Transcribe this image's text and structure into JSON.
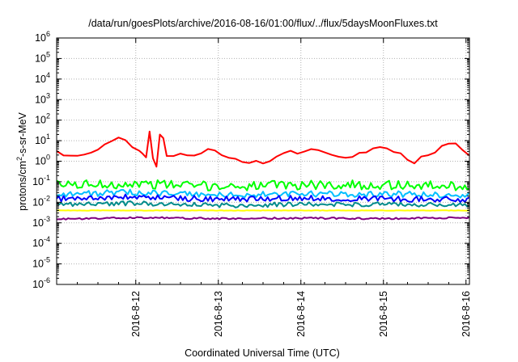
{
  "chart_data": {
    "type": "line",
    "title": "/data/run/goesPlots/archive/2016-08-16/01:00/flux/../flux/5daysMoonFluxes.txt",
    "xlabel": "Coordinated Universal Time (UTC)",
    "ylabel": "protons/cm²-s-sr-MeV",
    "ylabel_parts": {
      "pre": "protons/cm",
      "sup": "2",
      "post": "-s-sr-MeV"
    },
    "y_scale": "log",
    "ylim": [
      1e-06,
      1000000.0
    ],
    "y_ticks": [
      {
        "value": 1e-06,
        "base": "10",
        "exp": "-6"
      },
      {
        "value": 1e-05,
        "base": "10",
        "exp": "-5"
      },
      {
        "value": 0.0001,
        "base": "10",
        "exp": "-4"
      },
      {
        "value": 0.001,
        "base": "10",
        "exp": "-3"
      },
      {
        "value": 0.01,
        "base": "10",
        "exp": "-2"
      },
      {
        "value": 0.1,
        "base": "10",
        "exp": "-1"
      },
      {
        "value": 1,
        "base": "10",
        "exp": "0"
      },
      {
        "value": 10,
        "base": "10",
        "exp": "1"
      },
      {
        "value": 100,
        "base": "10",
        "exp": "2"
      },
      {
        "value": 1000,
        "base": "10",
        "exp": "3"
      },
      {
        "value": 10000,
        "base": "10",
        "exp": "4"
      },
      {
        "value": 100000,
        "base": "10",
        "exp": "5"
      },
      {
        "value": 1000000,
        "base": "10",
        "exp": "6"
      }
    ],
    "xlim": [
      "2016-08-11 01:00",
      "2016-08-16 01:00"
    ],
    "x_ticks": [
      "2016-8-12",
      "2016-8-13",
      "2016-8-14",
      "2016-8-15",
      "2016-8-16"
    ],
    "x_tick_dates": [
      "2016-08-12",
      "2016-08-13",
      "2016-08-14",
      "2016-08-15",
      "2016-08-16"
    ],
    "grid": true,
    "legend": "none",
    "series": [
      {
        "color": "#ff0000",
        "points": [
          [
            "2016-08-11 01:00",
            3.0
          ],
          [
            "2016-08-11 03:00",
            2.0
          ],
          [
            "2016-08-11 05:00",
            1.8
          ],
          [
            "2016-08-11 07:00",
            1.6
          ],
          [
            "2016-08-11 09:00",
            2.0
          ],
          [
            "2016-08-11 11:00",
            2.5
          ],
          [
            "2016-08-11 13:00",
            4.0
          ],
          [
            "2016-08-11 15:00",
            6.0
          ],
          [
            "2016-08-11 17:00",
            9.0
          ],
          [
            "2016-08-11 19:00",
            13.0
          ],
          [
            "2016-08-11 21:00",
            10.0
          ],
          [
            "2016-08-11 23:00",
            5.0
          ],
          [
            "2016-08-12 01:00",
            3.0
          ],
          [
            "2016-08-12 02:00",
            2.5
          ],
          [
            "2016-08-12 03:00",
            1.5
          ],
          [
            "2016-08-12 04:00",
            30.0
          ],
          [
            "2016-08-12 05:00",
            1.5
          ],
          [
            "2016-08-12 06:00",
            0.5
          ],
          [
            "2016-08-12 07:00",
            18.0
          ],
          [
            "2016-08-12 08:00",
            12.0
          ],
          [
            "2016-08-12 09:00",
            2.0
          ],
          [
            "2016-08-12 11:00",
            1.8
          ],
          [
            "2016-08-12 13:00",
            2.2
          ],
          [
            "2016-08-12 15:00",
            2.0
          ],
          [
            "2016-08-12 17:00",
            2.0
          ],
          [
            "2016-08-12 19:00",
            2.5
          ],
          [
            "2016-08-12 21:00",
            3.5
          ],
          [
            "2016-08-12 23:00",
            3.0
          ],
          [
            "2016-08-13 01:00",
            2.0
          ],
          [
            "2016-08-13 03:00",
            1.5
          ],
          [
            "2016-08-13 05:00",
            1.2
          ],
          [
            "2016-08-13 07:00",
            1.0
          ],
          [
            "2016-08-13 09:00",
            0.9
          ],
          [
            "2016-08-13 11:00",
            1.1
          ],
          [
            "2016-08-13 13:00",
            0.8
          ],
          [
            "2016-08-13 15:00",
            1.0
          ],
          [
            "2016-08-13 17:00",
            1.5
          ],
          [
            "2016-08-13 19:00",
            2.5
          ],
          [
            "2016-08-13 21:00",
            3.0
          ],
          [
            "2016-08-13 23:00",
            2.5
          ],
          [
            "2016-08-14 01:00",
            3.0
          ],
          [
            "2016-08-14 03:00",
            3.5
          ],
          [
            "2016-08-14 05:00",
            3.2
          ],
          [
            "2016-08-14 07:00",
            2.8
          ],
          [
            "2016-08-14 09:00",
            2.0
          ],
          [
            "2016-08-14 11:00",
            1.5
          ],
          [
            "2016-08-14 13:00",
            1.4
          ],
          [
            "2016-08-14 15:00",
            1.8
          ],
          [
            "2016-08-14 17:00",
            2.5
          ],
          [
            "2016-08-14 19:00",
            3.0
          ],
          [
            "2016-08-14 21:00",
            4.0
          ],
          [
            "2016-08-14 23:00",
            5.0
          ],
          [
            "2016-08-15 01:00",
            4.0
          ],
          [
            "2016-08-15 03:00",
            3.0
          ],
          [
            "2016-08-15 05:00",
            2.5
          ],
          [
            "2016-08-15 07:00",
            1.2
          ],
          [
            "2016-08-15 09:00",
            0.8
          ],
          [
            "2016-08-15 11:00",
            1.5
          ],
          [
            "2016-08-15 13:00",
            2.0
          ],
          [
            "2016-08-15 15:00",
            3.0
          ],
          [
            "2016-08-15 17:00",
            6.0
          ],
          [
            "2016-08-15 19:00",
            8.0
          ],
          [
            "2016-08-15 21:00",
            7.0
          ],
          [
            "2016-08-15 23:00",
            4.0
          ],
          [
            "2016-08-16 01:00",
            2.0
          ]
        ]
      },
      {
        "color": "#00ff00",
        "points": [
          [
            "2016-08-11 01:00",
            0.07
          ],
          [
            "2016-08-12 01:00",
            0.08
          ],
          [
            "2016-08-13 01:00",
            0.06
          ],
          [
            "2016-08-14 01:00",
            0.07
          ],
          [
            "2016-08-15 01:00",
            0.07
          ],
          [
            "2016-08-16 01:00",
            0.06
          ]
        ]
      },
      {
        "color": "#00bfff",
        "points": [
          [
            "2016-08-11 01:00",
            0.025
          ],
          [
            "2016-08-12 01:00",
            0.03
          ],
          [
            "2016-08-13 01:00",
            0.022
          ],
          [
            "2016-08-14 01:00",
            0.025
          ],
          [
            "2016-08-15 01:00",
            0.025
          ],
          [
            "2016-08-16 01:00",
            0.022
          ]
        ]
      },
      {
        "color": "#0000ff",
        "points": [
          [
            "2016-08-11 01:00",
            0.015
          ],
          [
            "2016-08-12 01:00",
            0.018
          ],
          [
            "2016-08-13 01:00",
            0.014
          ],
          [
            "2016-08-14 01:00",
            0.016
          ],
          [
            "2016-08-15 01:00",
            0.015
          ],
          [
            "2016-08-16 01:00",
            0.013
          ]
        ]
      },
      {
        "color": "#008b8b",
        "points": [
          [
            "2016-08-11 01:00",
            0.008
          ],
          [
            "2016-08-12 01:00",
            0.009
          ],
          [
            "2016-08-13 01:00",
            0.007
          ],
          [
            "2016-08-14 01:00",
            0.008
          ],
          [
            "2016-08-15 01:00",
            0.008
          ],
          [
            "2016-08-16 01:00",
            0.007
          ]
        ]
      },
      {
        "color": "#ffff00",
        "points": [
          [
            "2016-08-11 01:00",
            0.004
          ],
          [
            "2016-08-12 01:00",
            0.004
          ],
          [
            "2016-08-13 01:00",
            0.004
          ],
          [
            "2016-08-14 01:00",
            0.004
          ],
          [
            "2016-08-15 01:00",
            0.004
          ],
          [
            "2016-08-16 01:00",
            0.004
          ]
        ]
      },
      {
        "color": "#800080",
        "points": [
          [
            "2016-08-11 01:00",
            0.0015
          ],
          [
            "2016-08-12 01:00",
            0.0018
          ],
          [
            "2016-08-13 01:00",
            0.0016
          ],
          [
            "2016-08-14 01:00",
            0.0017
          ],
          [
            "2016-08-15 01:00",
            0.0016
          ],
          [
            "2016-08-16 01:00",
            0.0018
          ]
        ]
      }
    ]
  }
}
